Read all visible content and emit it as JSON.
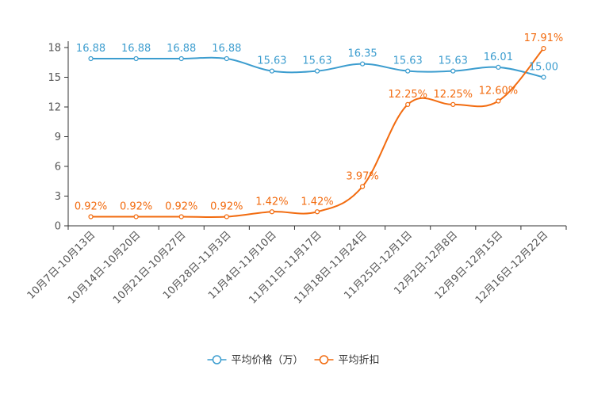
{
  "chart_data": {
    "type": "line",
    "title": "",
    "xlabel": "",
    "ylabel": "",
    "ylim": [
      0,
      18
    ],
    "yticks": [
      0,
      3,
      6,
      9,
      12,
      15,
      18
    ],
    "categories": [
      "10月7日-10月13日",
      "10月14日-10月20日",
      "10月21日-10月27日",
      "10月28日-11月3日",
      "11月4日-11月10日",
      "11月11日-11月17日",
      "11月18日-11月24日",
      "11月25日-12月1日",
      "12月2日-12月8日",
      "12月9日-12月15日",
      "12月16日-12月22日"
    ],
    "series": [
      {
        "name": "平均价格（万）",
        "color": "#3c9dcf",
        "values": [
          16.88,
          16.88,
          16.88,
          16.88,
          15.63,
          15.63,
          16.35,
          15.63,
          15.63,
          16.01,
          15.0
        ],
        "labels": [
          "16.88",
          "16.88",
          "16.88",
          "16.88",
          "15.63",
          "15.63",
          "16.35",
          "15.63",
          "15.63",
          "16.01",
          "15.00"
        ]
      },
      {
        "name": "平均折扣",
        "color": "#f26b0f",
        "values": [
          0.92,
          0.92,
          0.92,
          0.92,
          1.42,
          1.42,
          3.97,
          12.25,
          12.25,
          12.6,
          17.91
        ],
        "labels": [
          "0.92%",
          "0.92%",
          "0.92%",
          "0.92%",
          "1.42%",
          "1.42%",
          "3.97%",
          "12.25%",
          "12.25%",
          "12.60%",
          "17.91%"
        ]
      }
    ],
    "legend_position": "bottom-center"
  }
}
